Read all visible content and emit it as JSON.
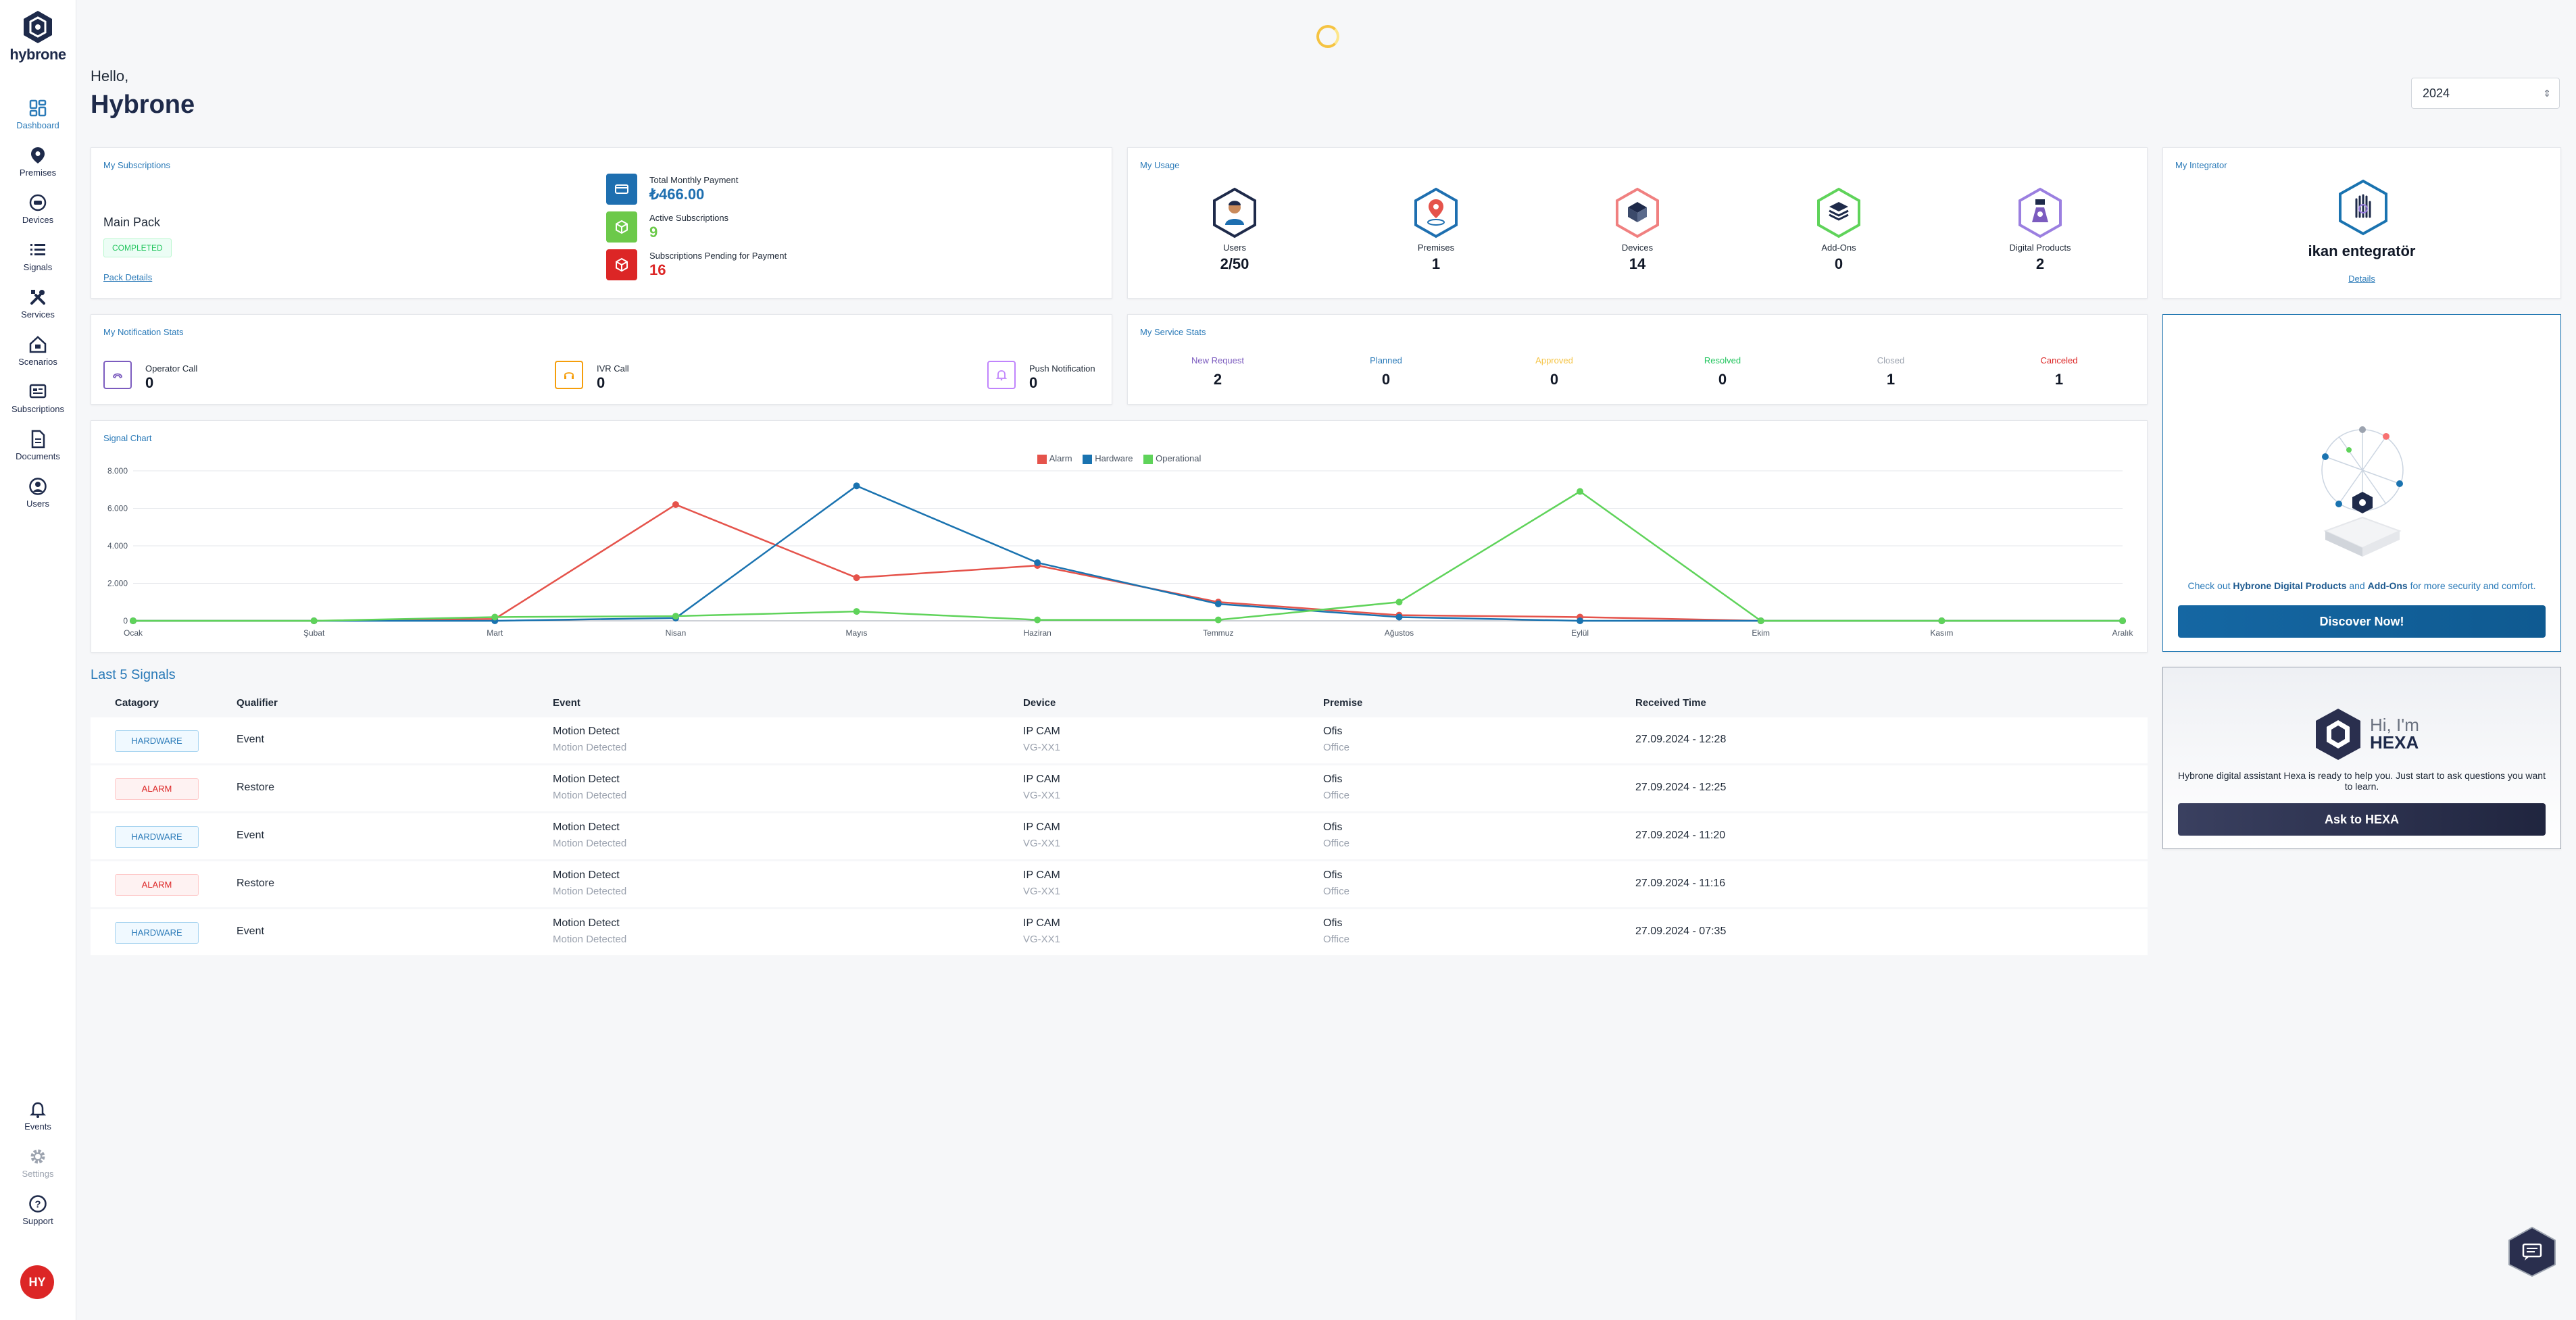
{
  "app": {
    "name": "hybrone"
  },
  "sidebar": {
    "items": [
      {
        "label": "Dashboard",
        "icon": "dashboard-icon"
      },
      {
        "label": "Premises",
        "icon": "location-pin-icon"
      },
      {
        "label": "Devices",
        "icon": "device-icon"
      },
      {
        "label": "Signals",
        "icon": "list-icon"
      },
      {
        "label": "Services",
        "icon": "tools-icon"
      },
      {
        "label": "Scenarios",
        "icon": "home-icon"
      },
      {
        "label": "Subscriptions",
        "icon": "subscription-icon"
      },
      {
        "label": "Documents",
        "icon": "document-icon"
      },
      {
        "label": "Users",
        "icon": "user-icon"
      }
    ],
    "bottom_items": [
      {
        "label": "Events",
        "icon": "bell-icon"
      },
      {
        "label": "Settings",
        "icon": "gear-icon"
      },
      {
        "label": "Support",
        "icon": "help-icon"
      }
    ],
    "avatar_initials": "HY"
  },
  "header": {
    "greeting": "Hello,",
    "user_name": "Hybrone",
    "year": "2024"
  },
  "subscriptions": {
    "title": "My Subscriptions",
    "pack_name": "Main Pack",
    "status": "COMPLETED",
    "details_link": "Pack Details",
    "rows": [
      {
        "label": "Total Monthly Payment",
        "value": "₺466.00",
        "color": "#1e6fb0"
      },
      {
        "label": "Active Subscriptions",
        "value": "9",
        "color": "#6cc94a"
      },
      {
        "label": "Subscriptions Pending for Payment",
        "value": "16",
        "color": "#dc2626"
      }
    ]
  },
  "usage": {
    "title": "My Usage",
    "items": [
      {
        "label": "Users",
        "value": "2/50"
      },
      {
        "label": "Premises",
        "value": "1"
      },
      {
        "label": "Devices",
        "value": "14"
      },
      {
        "label": "Add-Ons",
        "value": "0"
      },
      {
        "label": "Digital Products",
        "value": "2"
      }
    ]
  },
  "integrator": {
    "title": "My Integrator",
    "name": "ikan entegratör",
    "details_link": "Details"
  },
  "notification_stats": {
    "title": "My Notification Stats",
    "items": [
      {
        "label": "Operator Call",
        "value": "0"
      },
      {
        "label": "IVR Call",
        "value": "0"
      },
      {
        "label": "Push Notification",
        "value": "0"
      }
    ]
  },
  "service_stats": {
    "title": "My Service Stats",
    "items": [
      {
        "label": "New Request",
        "value": "2",
        "color": "#7c5cbf"
      },
      {
        "label": "Planned",
        "value": "0",
        "color": "#2a7ab8"
      },
      {
        "label": "Approved",
        "value": "0",
        "color": "#f5c342"
      },
      {
        "label": "Resolved",
        "value": "0",
        "color": "#22c55e"
      },
      {
        "label": "Closed",
        "value": "1",
        "color": "#9ca3af"
      },
      {
        "label": "Canceled",
        "value": "1",
        "color": "#dc2626"
      }
    ]
  },
  "chart_card": {
    "title": "Signal Chart"
  },
  "chart_data": {
    "type": "line",
    "categories": [
      "Ocak",
      "Şubat",
      "Mart",
      "Nisan",
      "Mayıs",
      "Haziran",
      "Temmuz",
      "Ağustos",
      "Eylül",
      "Ekim",
      "Kasım",
      "Aralık"
    ],
    "series": [
      {
        "name": "Alarm",
        "color": "#e5534b",
        "values": [
          0,
          0,
          100,
          6200,
          2300,
          2950,
          1000,
          300,
          200,
          0,
          0,
          0
        ]
      },
      {
        "name": "Hardware",
        "color": "#1a73b0",
        "values": [
          0,
          0,
          0,
          150,
          7200,
          3100,
          900,
          200,
          0,
          0,
          0,
          0
        ]
      },
      {
        "name": "Operational",
        "color": "#5fd35a",
        "values": [
          0,
          0,
          200,
          250,
          500,
          50,
          50,
          1000,
          6900,
          0,
          0,
          0
        ]
      }
    ],
    "ylim": [
      0,
      8000
    ],
    "yticks": [
      "0",
      "2.000",
      "4.000",
      "6.000",
      "8.000"
    ],
    "legend_position": "top-center",
    "grid": true
  },
  "signals": {
    "title": "Last 5 Signals",
    "columns": [
      "Catagory",
      "Qualifier",
      "Event",
      "Device",
      "Premise",
      "Received Time"
    ],
    "rows": [
      {
        "category": "HARDWARE",
        "type": "hardware",
        "qualifier": "Event",
        "event": "Motion Detect",
        "event_sub": "Motion Detected",
        "device": "IP CAM",
        "device_sub": "VG-XX1",
        "premise": "Ofis",
        "premise_sub": "Office",
        "time": "27.09.2024 - 12:28"
      },
      {
        "category": "ALARM",
        "type": "alarm",
        "qualifier": "Restore",
        "event": "Motion Detect",
        "event_sub": "Motion Detected",
        "device": "IP CAM",
        "device_sub": "VG-XX1",
        "premise": "Ofis",
        "premise_sub": "Office",
        "time": "27.09.2024 - 12:25"
      },
      {
        "category": "HARDWARE",
        "type": "hardware",
        "qualifier": "Event",
        "event": "Motion Detect",
        "event_sub": "Motion Detected",
        "device": "IP CAM",
        "device_sub": "VG-XX1",
        "premise": "Ofis",
        "premise_sub": "Office",
        "time": "27.09.2024 - 11:20"
      },
      {
        "category": "ALARM",
        "type": "alarm",
        "qualifier": "Restore",
        "event": "Motion Detect",
        "event_sub": "Motion Detected",
        "device": "IP CAM",
        "device_sub": "VG-XX1",
        "premise": "Ofis",
        "premise_sub": "Office",
        "time": "27.09.2024 - 11:16"
      },
      {
        "category": "HARDWARE",
        "type": "hardware",
        "qualifier": "Event",
        "event": "Motion Detect",
        "event_sub": "Motion Detected",
        "device": "IP CAM",
        "device_sub": "VG-XX1",
        "premise": "Ofis",
        "premise_sub": "Office",
        "time": "27.09.2024 - 07:35"
      }
    ]
  },
  "promo": {
    "text_before": "Check out ",
    "bold_1": "Hybrone Digital Products",
    "text_middle": " and ",
    "bold_2": "Add-Ons",
    "text_after": " for more security and comfort.",
    "button": "Discover Now!"
  },
  "hexa": {
    "greeting": "Hi, I'm",
    "name": "HEXA",
    "description": "Hybrone digital assistant Hexa is ready to help you. Just start to ask questions you want to learn.",
    "button": "Ask to HEXA"
  },
  "colors": {
    "accent": "#2a7ab8",
    "sidebar_text": "#1e2a4a",
    "button_blue": "#1567a3",
    "button_dark": "#2a2f4e"
  }
}
